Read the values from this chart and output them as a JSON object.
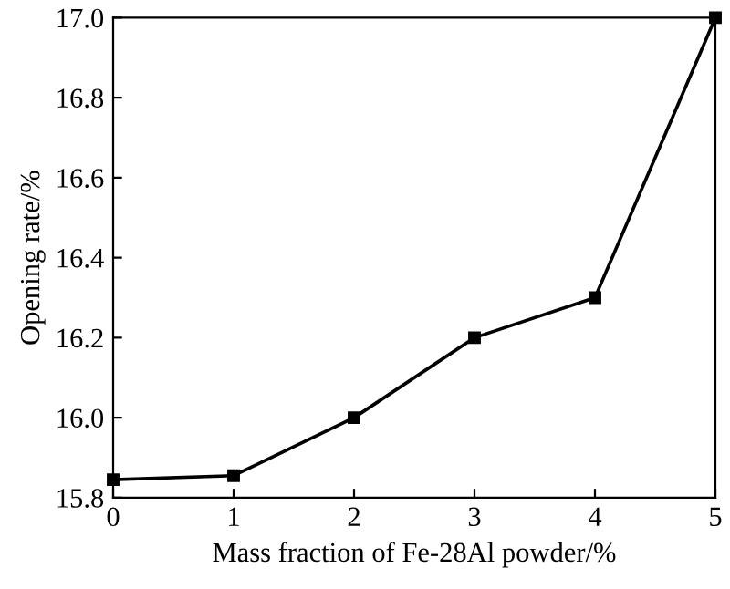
{
  "chart_data": {
    "type": "line",
    "xlabel": "Mass fraction of Fe-28Al powder/%",
    "ylabel": "Opening rate/%",
    "x": [
      0,
      1,
      2,
      3,
      4,
      5
    ],
    "series": [
      {
        "color": "#000000",
        "values": [
          15.845,
          15.855,
          16.0,
          16.2,
          16.3,
          17.0
        ]
      }
    ],
    "xlim": [
      0,
      5
    ],
    "xticks": [
      0,
      1,
      2,
      3,
      4,
      5
    ],
    "ylim": [
      15.8,
      17.0
    ],
    "yticks": [
      {
        "value": 15.8,
        "label": "15.8"
      },
      {
        "value": 16.0,
        "label": "16.0"
      },
      {
        "value": 16.2,
        "label": "16.2"
      },
      {
        "value": 16.4,
        "label": "16.4"
      },
      {
        "value": 16.6,
        "label": "16.6"
      },
      {
        "value": 16.8,
        "label": "16.8"
      },
      {
        "value": 17.0,
        "label": "17.0"
      }
    ],
    "marker": "square",
    "line_style": "solid",
    "grid": false,
    "legend": false
  }
}
